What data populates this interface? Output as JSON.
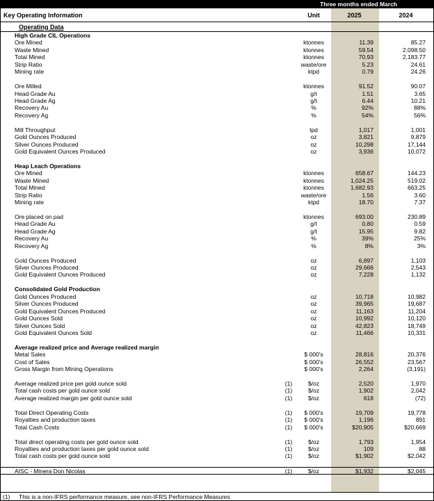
{
  "header": {
    "period": "Three months ended March",
    "title": "Key Operating Information",
    "unit_col": "Unit",
    "year_2025": "2025",
    "year_2024": "2024",
    "subtitle": "Operating Data"
  },
  "footnote": {
    "marker": "(1)",
    "text": "This is a non-IFRS performance measure, see non-IFRS Performance Measures"
  },
  "colors": {
    "highlight_2025": "#d8d2c0",
    "top_bar": "#000000"
  },
  "rows": [
    {
      "type": "section",
      "label": "High Grade CIL Operations"
    },
    {
      "type": "data",
      "label": "Ore Mined",
      "unit": "ktonnes",
      "y2025": "11.39",
      "y2024": "85.27"
    },
    {
      "type": "data",
      "label": "Waste Mined",
      "unit": "ktonnes",
      "y2025": "59.54",
      "y2024": "2,098.50"
    },
    {
      "type": "data",
      "label": "Total Mined",
      "unit": "ktonnes",
      "y2025": "70.93",
      "y2024": "2,183.77"
    },
    {
      "type": "data",
      "label": "Strip Ratio",
      "unit": "waste/ore",
      "y2025": "5.23",
      "y2024": "24.61"
    },
    {
      "type": "data",
      "label": "Mining rate",
      "unit": "ktpd",
      "y2025": "0.79",
      "y2024": "24.26"
    },
    {
      "type": "blank"
    },
    {
      "type": "data",
      "label": "Ore Milled",
      "unit": "ktonnes",
      "y2025": "91.52",
      "y2024": "90.07"
    },
    {
      "type": "data",
      "label": "Head Grade Au",
      "unit": "g/t",
      "y2025": "1.51",
      "y2024": "3.65"
    },
    {
      "type": "data",
      "label": "Head Grade Ag",
      "unit": "g/t",
      "y2025": "6.44",
      "y2024": "10.21"
    },
    {
      "type": "data",
      "label": "Recovery Au",
      "unit": "%",
      "y2025": "92%",
      "y2024": "88%"
    },
    {
      "type": "data",
      "label": "Recovery Ag",
      "unit": "%",
      "y2025": "54%",
      "y2024": "56%"
    },
    {
      "type": "blank"
    },
    {
      "type": "data",
      "label": "Mill Throughput",
      "unit": "tpd",
      "y2025": "1,017",
      "y2024": "1,001"
    },
    {
      "type": "data",
      "label": "Gold Ounces Produced",
      "unit": "oz",
      "y2025": "3,821",
      "y2024": "9,879"
    },
    {
      "type": "data",
      "label": "Silver Ounces Produced",
      "unit": "oz",
      "y2025": "10,298",
      "y2024": "17,144"
    },
    {
      "type": "data",
      "label": "Gold Equivalent Ounces Produced",
      "unit": "oz",
      "y2025": "3,936",
      "y2024": "10,072"
    },
    {
      "type": "blank"
    },
    {
      "type": "section",
      "label": "Heap Leach Operations"
    },
    {
      "type": "data",
      "label": "Ore Mined",
      "unit": "ktonnes",
      "y2025": "658.67",
      "y2024": "144.23"
    },
    {
      "type": "data",
      "label": "Waste Mined",
      "unit": "ktonnes",
      "y2025": "1,024.25",
      "y2024": "519.02"
    },
    {
      "type": "data",
      "label": "Total Mined",
      "unit": "ktonnes",
      "y2025": "1,682.93",
      "y2024": "663.25"
    },
    {
      "type": "data",
      "label": "Strip Ratio",
      "unit": "waste/ore",
      "y2025": "1.56",
      "y2024": "3.60"
    },
    {
      "type": "data",
      "label": "Mining rate",
      "unit": "ktpd",
      "y2025": "18.70",
      "y2024": "7.37"
    },
    {
      "type": "blank"
    },
    {
      "type": "data",
      "label": "Ore placed on pad",
      "unit": "ktonnes",
      "y2025": "693.00",
      "y2024": "230.89"
    },
    {
      "type": "data",
      "label": "Head Grade Au",
      "unit": "g/t",
      "y2025": "0.80",
      "y2024": "0.59"
    },
    {
      "type": "data",
      "label": "Head Grade Ag",
      "unit": "g/t",
      "y2025": "15.95",
      "y2024": "9.82"
    },
    {
      "type": "data",
      "label": "Recovery Au",
      "unit": "%",
      "y2025": "39%",
      "y2024": "25%"
    },
    {
      "type": "data",
      "label": "Recovery Ag",
      "unit": "%",
      "y2025": "8%",
      "y2024": "3%"
    },
    {
      "type": "blank"
    },
    {
      "type": "data",
      "label": "Gold Ounces Produced",
      "unit": "oz",
      "y2025": "6,897",
      "y2024": "1,103"
    },
    {
      "type": "data",
      "label": "Silver Ounces Produced",
      "unit": "oz",
      "y2025": "29,666",
      "y2024": "2,543"
    },
    {
      "type": "data",
      "label": "Gold Equivalent Ounces Produced",
      "unit": "oz",
      "y2025": "7,228",
      "y2024": "1,132"
    },
    {
      "type": "blank"
    },
    {
      "type": "section",
      "label": "Consolidated Gold Production"
    },
    {
      "type": "data",
      "label": "Gold Ounces Produced",
      "unit": "oz",
      "y2025": "10,718",
      "y2024": "10,982"
    },
    {
      "type": "data",
      "label": "Silver Ounces Produced",
      "unit": "oz",
      "y2025": "39,965",
      "y2024": "19,687"
    },
    {
      "type": "data",
      "label": "Gold Equivalent Ounces Produced",
      "unit": "oz",
      "y2025": "11,163",
      "y2024": "11,204"
    },
    {
      "type": "data",
      "label": "Gold Ounces Sold",
      "unit": "oz",
      "y2025": "10,992",
      "y2024": "10,120"
    },
    {
      "type": "data",
      "label": "Silver Ounces Sold",
      "unit": "oz",
      "y2025": "42,823",
      "y2024": "18,749"
    },
    {
      "type": "data",
      "label": "Gold Equivalent Ounces Sold",
      "unit": "oz",
      "y2025": "11,466",
      "y2024": "10,331"
    },
    {
      "type": "blank"
    },
    {
      "type": "section",
      "label": "Average realized price and Average realized margin"
    },
    {
      "type": "data",
      "label": "Metal Sales",
      "unit": "$ 000's",
      "y2025": "28,816",
      "y2024": "20,376"
    },
    {
      "type": "data",
      "label": "Cost of Sales",
      "unit": "$ 000's",
      "y2025": "26,552",
      "y2024": "23,567"
    },
    {
      "type": "data",
      "label": "Gross Margin from Mining Operations",
      "unit": "$ 000's",
      "y2025": "2,264",
      "y2024": "(3,191)"
    },
    {
      "type": "blank"
    },
    {
      "type": "data",
      "label": "Average realized price per gold ounce sold",
      "note": "(1)",
      "unit": "$/oz",
      "y2025": "2,520",
      "y2024": "1,970"
    },
    {
      "type": "data",
      "label": "Total cash costs per gold ounce sold",
      "note": "(1)",
      "unit": "$/oz",
      "y2025": "1,902",
      "y2024": "2,042"
    },
    {
      "type": "data",
      "label": "Average realized margin per gold ounce sold",
      "note": "(1)",
      "unit": "$/oz",
      "y2025": "618",
      "y2024": "(72)"
    },
    {
      "type": "blank"
    },
    {
      "type": "data",
      "label": "Total Direct Operating Costs",
      "note": "(1)",
      "unit": "$ 000's",
      "y2025": "19,709",
      "y2024": "19,778"
    },
    {
      "type": "data",
      "label": "Royalties and production taxes",
      "note": "(1)",
      "unit": "$ 000's",
      "y2025": "1,196",
      "y2024": "891"
    },
    {
      "type": "data",
      "label": "Total Cash Costs",
      "note": "(1)",
      "unit": "$ 000's",
      "y2025": "$20,905",
      "y2024": "$20,669"
    },
    {
      "type": "blank"
    },
    {
      "type": "data",
      "label": "Total direct operating costs per gold ounce sold",
      "note": "(1)",
      "unit": "$/oz",
      "y2025": "1,793",
      "y2024": "1,954"
    },
    {
      "type": "data",
      "label": "Royalties and production taxes per gold ounce sold",
      "note": "(1)",
      "unit": "$/oz",
      "y2025": "109",
      "y2024": "88"
    },
    {
      "type": "data",
      "label": "Total cash costs per gold ounce sold",
      "note": "(1)",
      "unit": "$/oz",
      "y2025": "$1,902",
      "y2024": "$2,042"
    },
    {
      "type": "blank"
    },
    {
      "type": "data",
      "label": "AISC - Minera Don Nicolas",
      "note": "(1)",
      "unit": "$/oz",
      "y2025": "$1,932",
      "y2024": "$2,045",
      "rule": "both"
    }
  ]
}
